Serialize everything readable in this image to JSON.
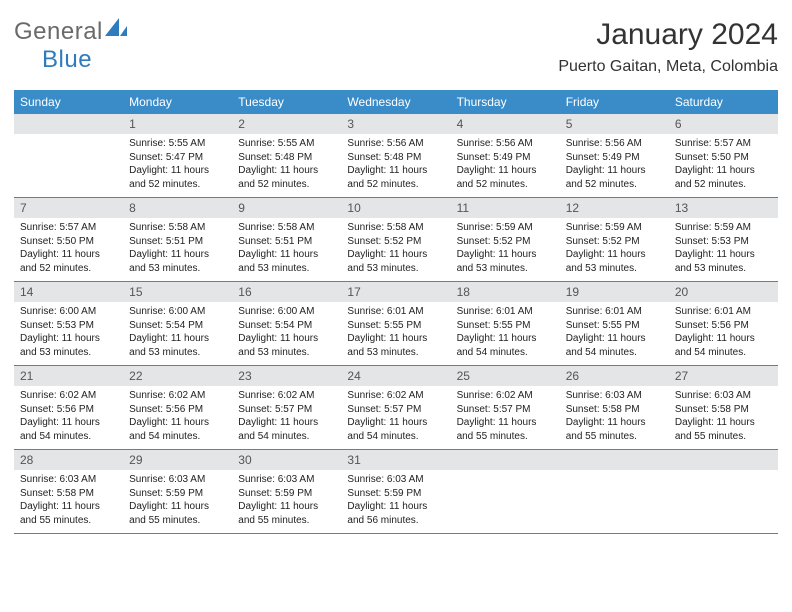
{
  "brand": {
    "general": "General",
    "blue": "Blue"
  },
  "title": "January 2024",
  "location": "Puerto Gaitan, Meta, Colombia",
  "colors": {
    "header_bg": "#3a8cc9",
    "header_text": "#ffffff",
    "daynum_bg": "#e4e5e6",
    "row_border": "#3a8cc9",
    "logo_gray": "#6a6a6a",
    "logo_blue": "#2f7bbf"
  },
  "typography": {
    "title_fontsize": 30,
    "location_fontsize": 16,
    "dayheader_fontsize": 12,
    "daynum_fontsize": 12,
    "body_fontsize": 10
  },
  "day_headers": [
    "Sunday",
    "Monday",
    "Tuesday",
    "Wednesday",
    "Thursday",
    "Friday",
    "Saturday"
  ],
  "weeks": [
    [
      {
        "num": "",
        "sunrise": "",
        "sunset": "",
        "daylight": ""
      },
      {
        "num": "1",
        "sunrise": "Sunrise: 5:55 AM",
        "sunset": "Sunset: 5:47 PM",
        "daylight": "Daylight: 11 hours and 52 minutes."
      },
      {
        "num": "2",
        "sunrise": "Sunrise: 5:55 AM",
        "sunset": "Sunset: 5:48 PM",
        "daylight": "Daylight: 11 hours and 52 minutes."
      },
      {
        "num": "3",
        "sunrise": "Sunrise: 5:56 AM",
        "sunset": "Sunset: 5:48 PM",
        "daylight": "Daylight: 11 hours and 52 minutes."
      },
      {
        "num": "4",
        "sunrise": "Sunrise: 5:56 AM",
        "sunset": "Sunset: 5:49 PM",
        "daylight": "Daylight: 11 hours and 52 minutes."
      },
      {
        "num": "5",
        "sunrise": "Sunrise: 5:56 AM",
        "sunset": "Sunset: 5:49 PM",
        "daylight": "Daylight: 11 hours and 52 minutes."
      },
      {
        "num": "6",
        "sunrise": "Sunrise: 5:57 AM",
        "sunset": "Sunset: 5:50 PM",
        "daylight": "Daylight: 11 hours and 52 minutes."
      }
    ],
    [
      {
        "num": "7",
        "sunrise": "Sunrise: 5:57 AM",
        "sunset": "Sunset: 5:50 PM",
        "daylight": "Daylight: 11 hours and 52 minutes."
      },
      {
        "num": "8",
        "sunrise": "Sunrise: 5:58 AM",
        "sunset": "Sunset: 5:51 PM",
        "daylight": "Daylight: 11 hours and 53 minutes."
      },
      {
        "num": "9",
        "sunrise": "Sunrise: 5:58 AM",
        "sunset": "Sunset: 5:51 PM",
        "daylight": "Daylight: 11 hours and 53 minutes."
      },
      {
        "num": "10",
        "sunrise": "Sunrise: 5:58 AM",
        "sunset": "Sunset: 5:52 PM",
        "daylight": "Daylight: 11 hours and 53 minutes."
      },
      {
        "num": "11",
        "sunrise": "Sunrise: 5:59 AM",
        "sunset": "Sunset: 5:52 PM",
        "daylight": "Daylight: 11 hours and 53 minutes."
      },
      {
        "num": "12",
        "sunrise": "Sunrise: 5:59 AM",
        "sunset": "Sunset: 5:52 PM",
        "daylight": "Daylight: 11 hours and 53 minutes."
      },
      {
        "num": "13",
        "sunrise": "Sunrise: 5:59 AM",
        "sunset": "Sunset: 5:53 PM",
        "daylight": "Daylight: 11 hours and 53 minutes."
      }
    ],
    [
      {
        "num": "14",
        "sunrise": "Sunrise: 6:00 AM",
        "sunset": "Sunset: 5:53 PM",
        "daylight": "Daylight: 11 hours and 53 minutes."
      },
      {
        "num": "15",
        "sunrise": "Sunrise: 6:00 AM",
        "sunset": "Sunset: 5:54 PM",
        "daylight": "Daylight: 11 hours and 53 minutes."
      },
      {
        "num": "16",
        "sunrise": "Sunrise: 6:00 AM",
        "sunset": "Sunset: 5:54 PM",
        "daylight": "Daylight: 11 hours and 53 minutes."
      },
      {
        "num": "17",
        "sunrise": "Sunrise: 6:01 AM",
        "sunset": "Sunset: 5:55 PM",
        "daylight": "Daylight: 11 hours and 53 minutes."
      },
      {
        "num": "18",
        "sunrise": "Sunrise: 6:01 AM",
        "sunset": "Sunset: 5:55 PM",
        "daylight": "Daylight: 11 hours and 54 minutes."
      },
      {
        "num": "19",
        "sunrise": "Sunrise: 6:01 AM",
        "sunset": "Sunset: 5:55 PM",
        "daylight": "Daylight: 11 hours and 54 minutes."
      },
      {
        "num": "20",
        "sunrise": "Sunrise: 6:01 AM",
        "sunset": "Sunset: 5:56 PM",
        "daylight": "Daylight: 11 hours and 54 minutes."
      }
    ],
    [
      {
        "num": "21",
        "sunrise": "Sunrise: 6:02 AM",
        "sunset": "Sunset: 5:56 PM",
        "daylight": "Daylight: 11 hours and 54 minutes."
      },
      {
        "num": "22",
        "sunrise": "Sunrise: 6:02 AM",
        "sunset": "Sunset: 5:56 PM",
        "daylight": "Daylight: 11 hours and 54 minutes."
      },
      {
        "num": "23",
        "sunrise": "Sunrise: 6:02 AM",
        "sunset": "Sunset: 5:57 PM",
        "daylight": "Daylight: 11 hours and 54 minutes."
      },
      {
        "num": "24",
        "sunrise": "Sunrise: 6:02 AM",
        "sunset": "Sunset: 5:57 PM",
        "daylight": "Daylight: 11 hours and 54 minutes."
      },
      {
        "num": "25",
        "sunrise": "Sunrise: 6:02 AM",
        "sunset": "Sunset: 5:57 PM",
        "daylight": "Daylight: 11 hours and 55 minutes."
      },
      {
        "num": "26",
        "sunrise": "Sunrise: 6:03 AM",
        "sunset": "Sunset: 5:58 PM",
        "daylight": "Daylight: 11 hours and 55 minutes."
      },
      {
        "num": "27",
        "sunrise": "Sunrise: 6:03 AM",
        "sunset": "Sunset: 5:58 PM",
        "daylight": "Daylight: 11 hours and 55 minutes."
      }
    ],
    [
      {
        "num": "28",
        "sunrise": "Sunrise: 6:03 AM",
        "sunset": "Sunset: 5:58 PM",
        "daylight": "Daylight: 11 hours and 55 minutes."
      },
      {
        "num": "29",
        "sunrise": "Sunrise: 6:03 AM",
        "sunset": "Sunset: 5:59 PM",
        "daylight": "Daylight: 11 hours and 55 minutes."
      },
      {
        "num": "30",
        "sunrise": "Sunrise: 6:03 AM",
        "sunset": "Sunset: 5:59 PM",
        "daylight": "Daylight: 11 hours and 55 minutes."
      },
      {
        "num": "31",
        "sunrise": "Sunrise: 6:03 AM",
        "sunset": "Sunset: 5:59 PM",
        "daylight": "Daylight: 11 hours and 56 minutes."
      },
      {
        "num": "",
        "sunrise": "",
        "sunset": "",
        "daylight": ""
      },
      {
        "num": "",
        "sunrise": "",
        "sunset": "",
        "daylight": ""
      },
      {
        "num": "",
        "sunrise": "",
        "sunset": "",
        "daylight": ""
      }
    ]
  ]
}
